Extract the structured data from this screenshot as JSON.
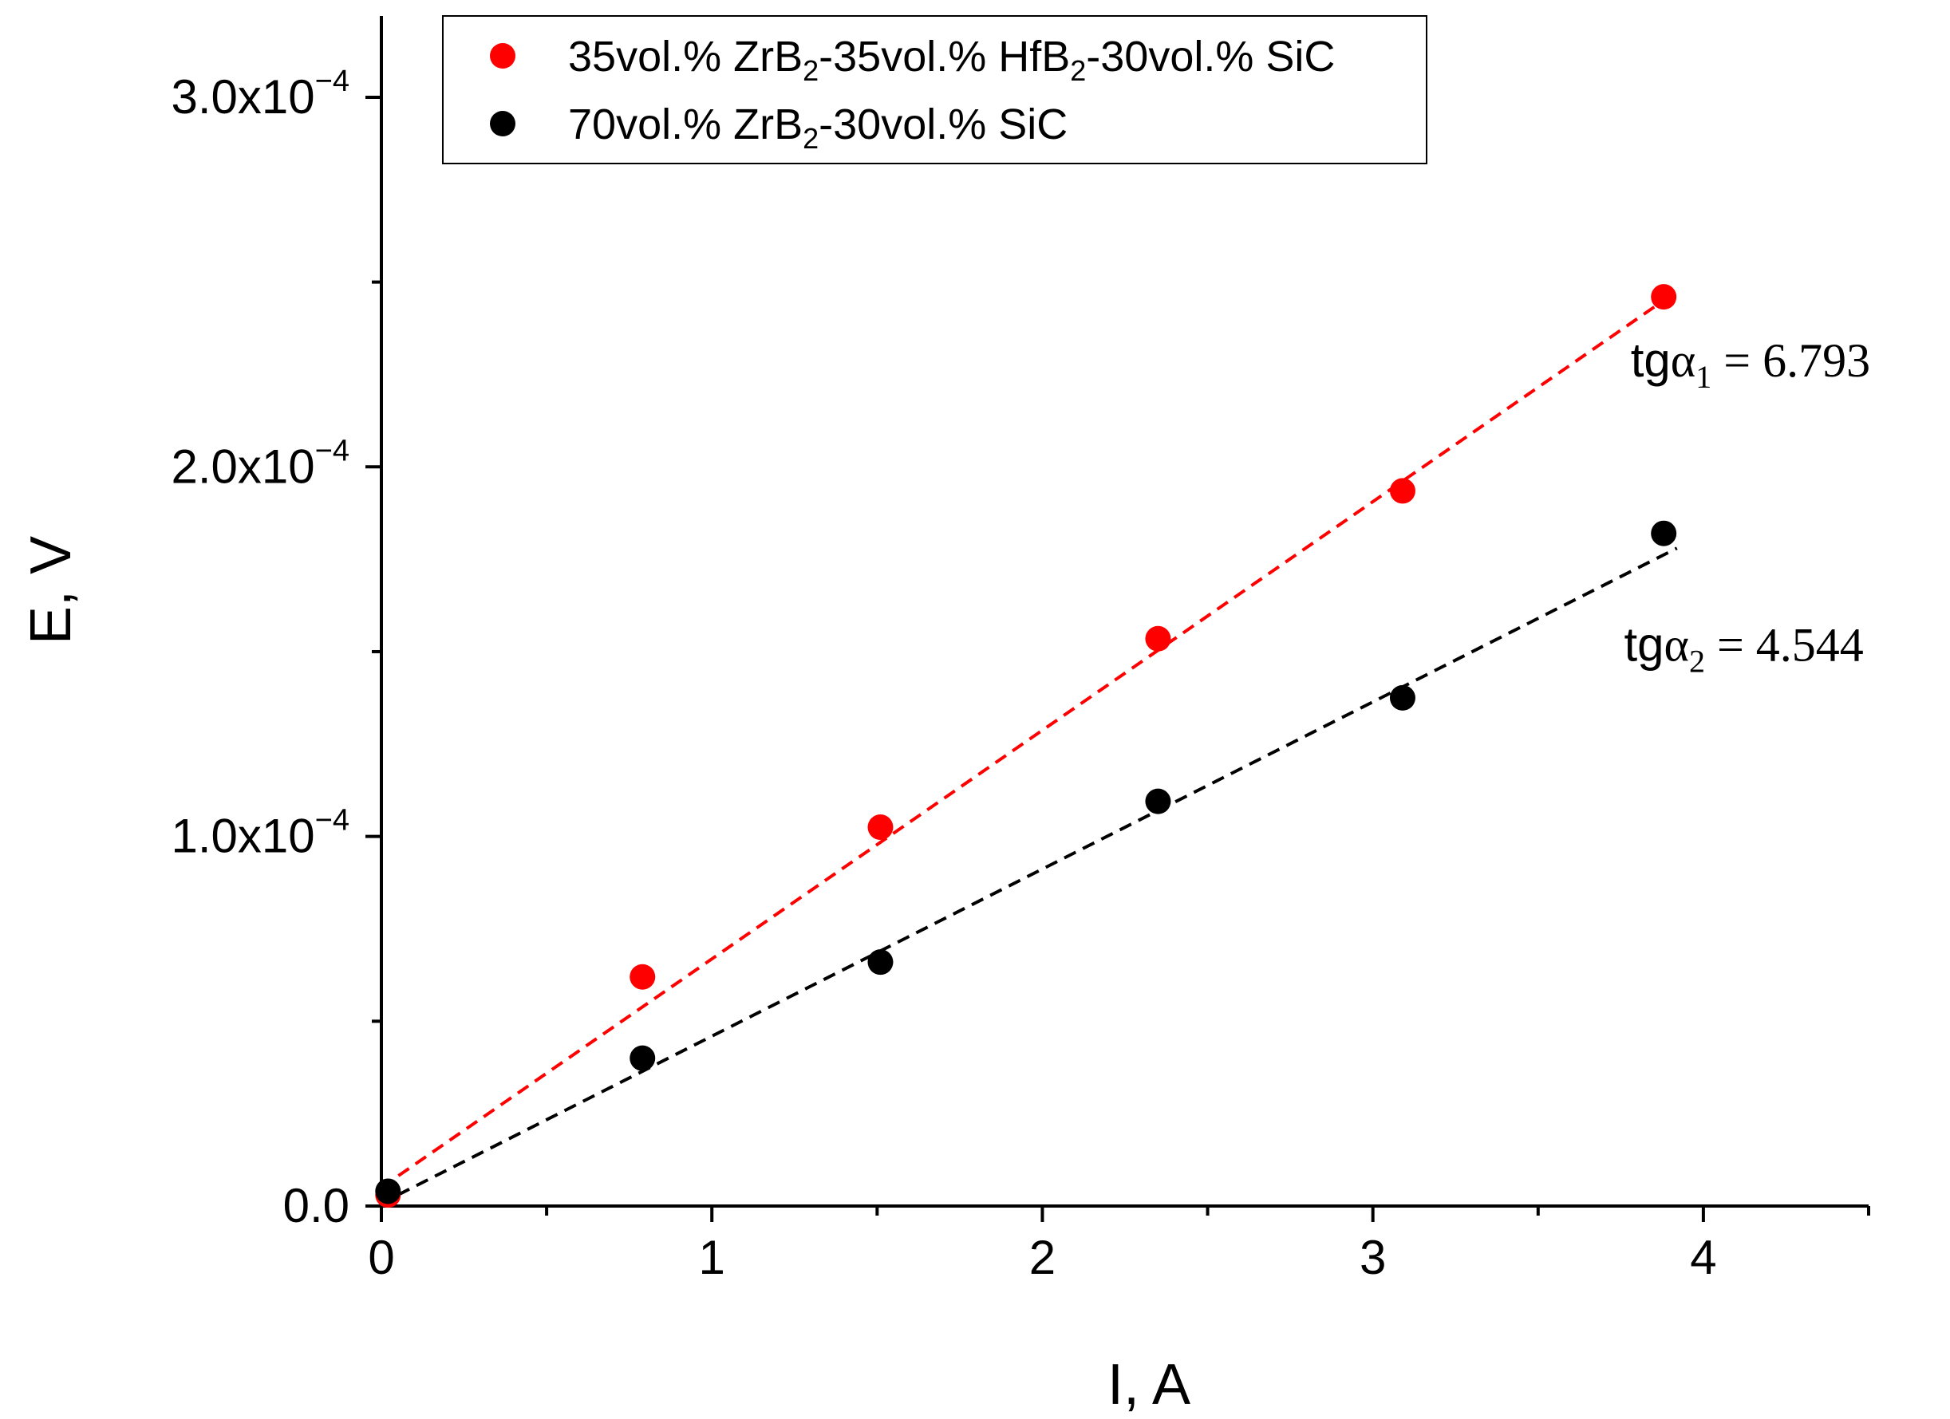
{
  "chart_data": {
    "type": "scatter",
    "title": "",
    "xlabel": "I, A",
    "ylabel": "E, V",
    "xlim": [
      0,
      4.5
    ],
    "ylim": [
      0,
      0.000322
    ],
    "x_ticks": [
      {
        "value": 0,
        "label": "0"
      },
      {
        "value": 1,
        "label": "1"
      },
      {
        "value": 2,
        "label": "2"
      },
      {
        "value": 3,
        "label": "3"
      },
      {
        "value": 4,
        "label": "4"
      }
    ],
    "x_minor_ticks": [
      0.5,
      1.5,
      2.5,
      3.5,
      4.5
    ],
    "y_ticks": [
      {
        "value": 0,
        "mantissa": "0.0",
        "exponent": ""
      },
      {
        "value": 0.0001,
        "mantissa": "1.0x10",
        "exponent": "−4"
      },
      {
        "value": 0.0002,
        "mantissa": "2.0x10",
        "exponent": "−4"
      },
      {
        "value": 0.0003,
        "mantissa": "3.0x10",
        "exponent": "−4"
      }
    ],
    "y_minor_ticks": [
      5e-05,
      0.00015,
      0.00025
    ],
    "series": [
      {
        "name": "35vol.% ZrB2-35vol.% HfB2-30vol.% SiC",
        "legend_parts": [
          "35vol.% ZrB",
          "2",
          "-35vol.% HfB",
          "2",
          "-30vol.% SiC"
        ],
        "color": "#ff0000",
        "x": [
          0.02,
          0.79,
          1.51,
          2.35,
          3.09,
          3.88
        ],
        "y": [
          3e-06,
          6.2e-05,
          0.0001025,
          0.0001535,
          0.0001935,
          0.000246
        ],
        "fit": {
          "x": [
            0.0,
            3.92
          ],
          "y": [
            5e-06,
            0.0002475
          ]
        },
        "annotation": {
          "prefix": "tg",
          "greek": "α",
          "sub": "1",
          "rest": " = 6.793",
          "x": 3.78,
          "y": 0.0002245
        }
      },
      {
        "name": "70vol.% ZrB2-30vol.% SiC",
        "legend_parts": [
          "70vol.% ZrB",
          "2",
          "-30vol.% SiC"
        ],
        "color": "#000000",
        "x": [
          0.02,
          0.79,
          1.51,
          2.35,
          3.09,
          3.88
        ],
        "y": [
          4e-06,
          4e-05,
          6.6e-05,
          0.0001095,
          0.0001375,
          0.000182
        ],
        "fit": {
          "x": [
            0.05,
            3.92
          ],
          "y": [
            3e-06,
            0.000178
          ]
        },
        "annotation": {
          "prefix": "tg",
          "greek": "α",
          "sub": "2",
          "rest": " = 4.544",
          "x": 3.76,
          "y": 0.0001475
        }
      }
    ],
    "legend_position": "top-center"
  }
}
